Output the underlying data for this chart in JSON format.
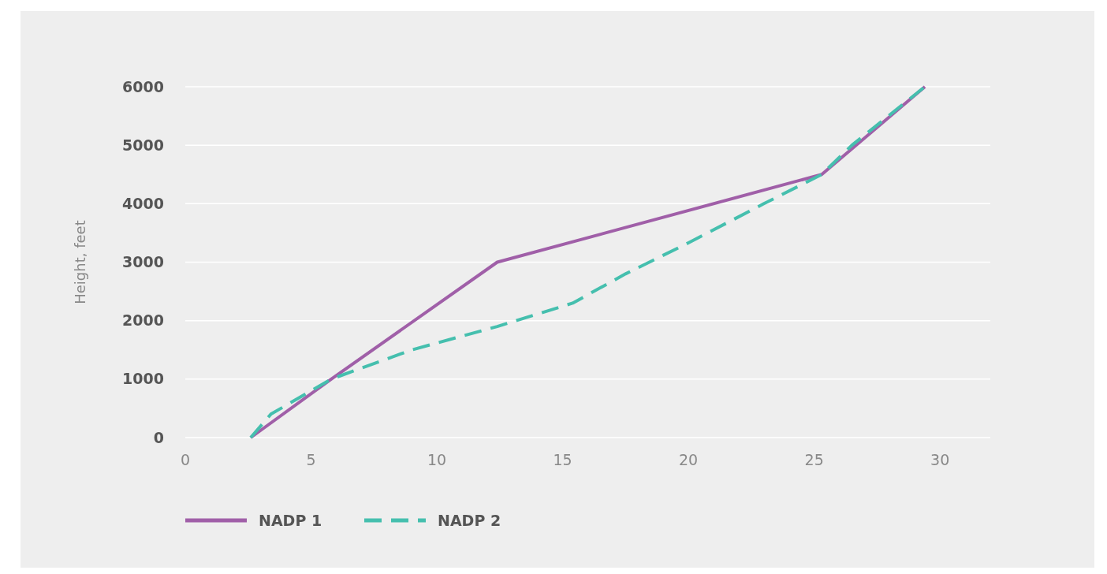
{
  "chart_data": {
    "type": "line",
    "ylabel": "Height, feet",
    "xlim": [
      0,
      32
    ],
    "xticks": [
      0,
      5,
      10,
      15,
      20,
      25,
      30
    ],
    "ylim": [
      0,
      6000
    ],
    "yticks": [
      0,
      1000,
      2000,
      3000,
      4000,
      5000,
      6000
    ],
    "grid": "y",
    "legend": "bottom left",
    "series": [
      {
        "name": "NADP 1",
        "color": "#a05fa8",
        "line_style": "solid",
        "x": [
          2.6,
          5.8,
          12.4,
          25.3,
          29.4
        ],
        "values": [
          0,
          1000,
          3000,
          4500,
          6000
        ]
      },
      {
        "name": "NADP 2",
        "color": "#45bfae",
        "line_style": "dashed",
        "x": [
          2.6,
          3.4,
          5.8,
          9,
          12.4,
          15.4,
          17.5,
          20,
          23,
          25.3,
          26.5,
          29.4
        ],
        "values": [
          0,
          400,
          1000,
          1500,
          1900,
          2300,
          2800,
          3330,
          4000,
          4500,
          5000,
          6000
        ]
      }
    ]
  }
}
